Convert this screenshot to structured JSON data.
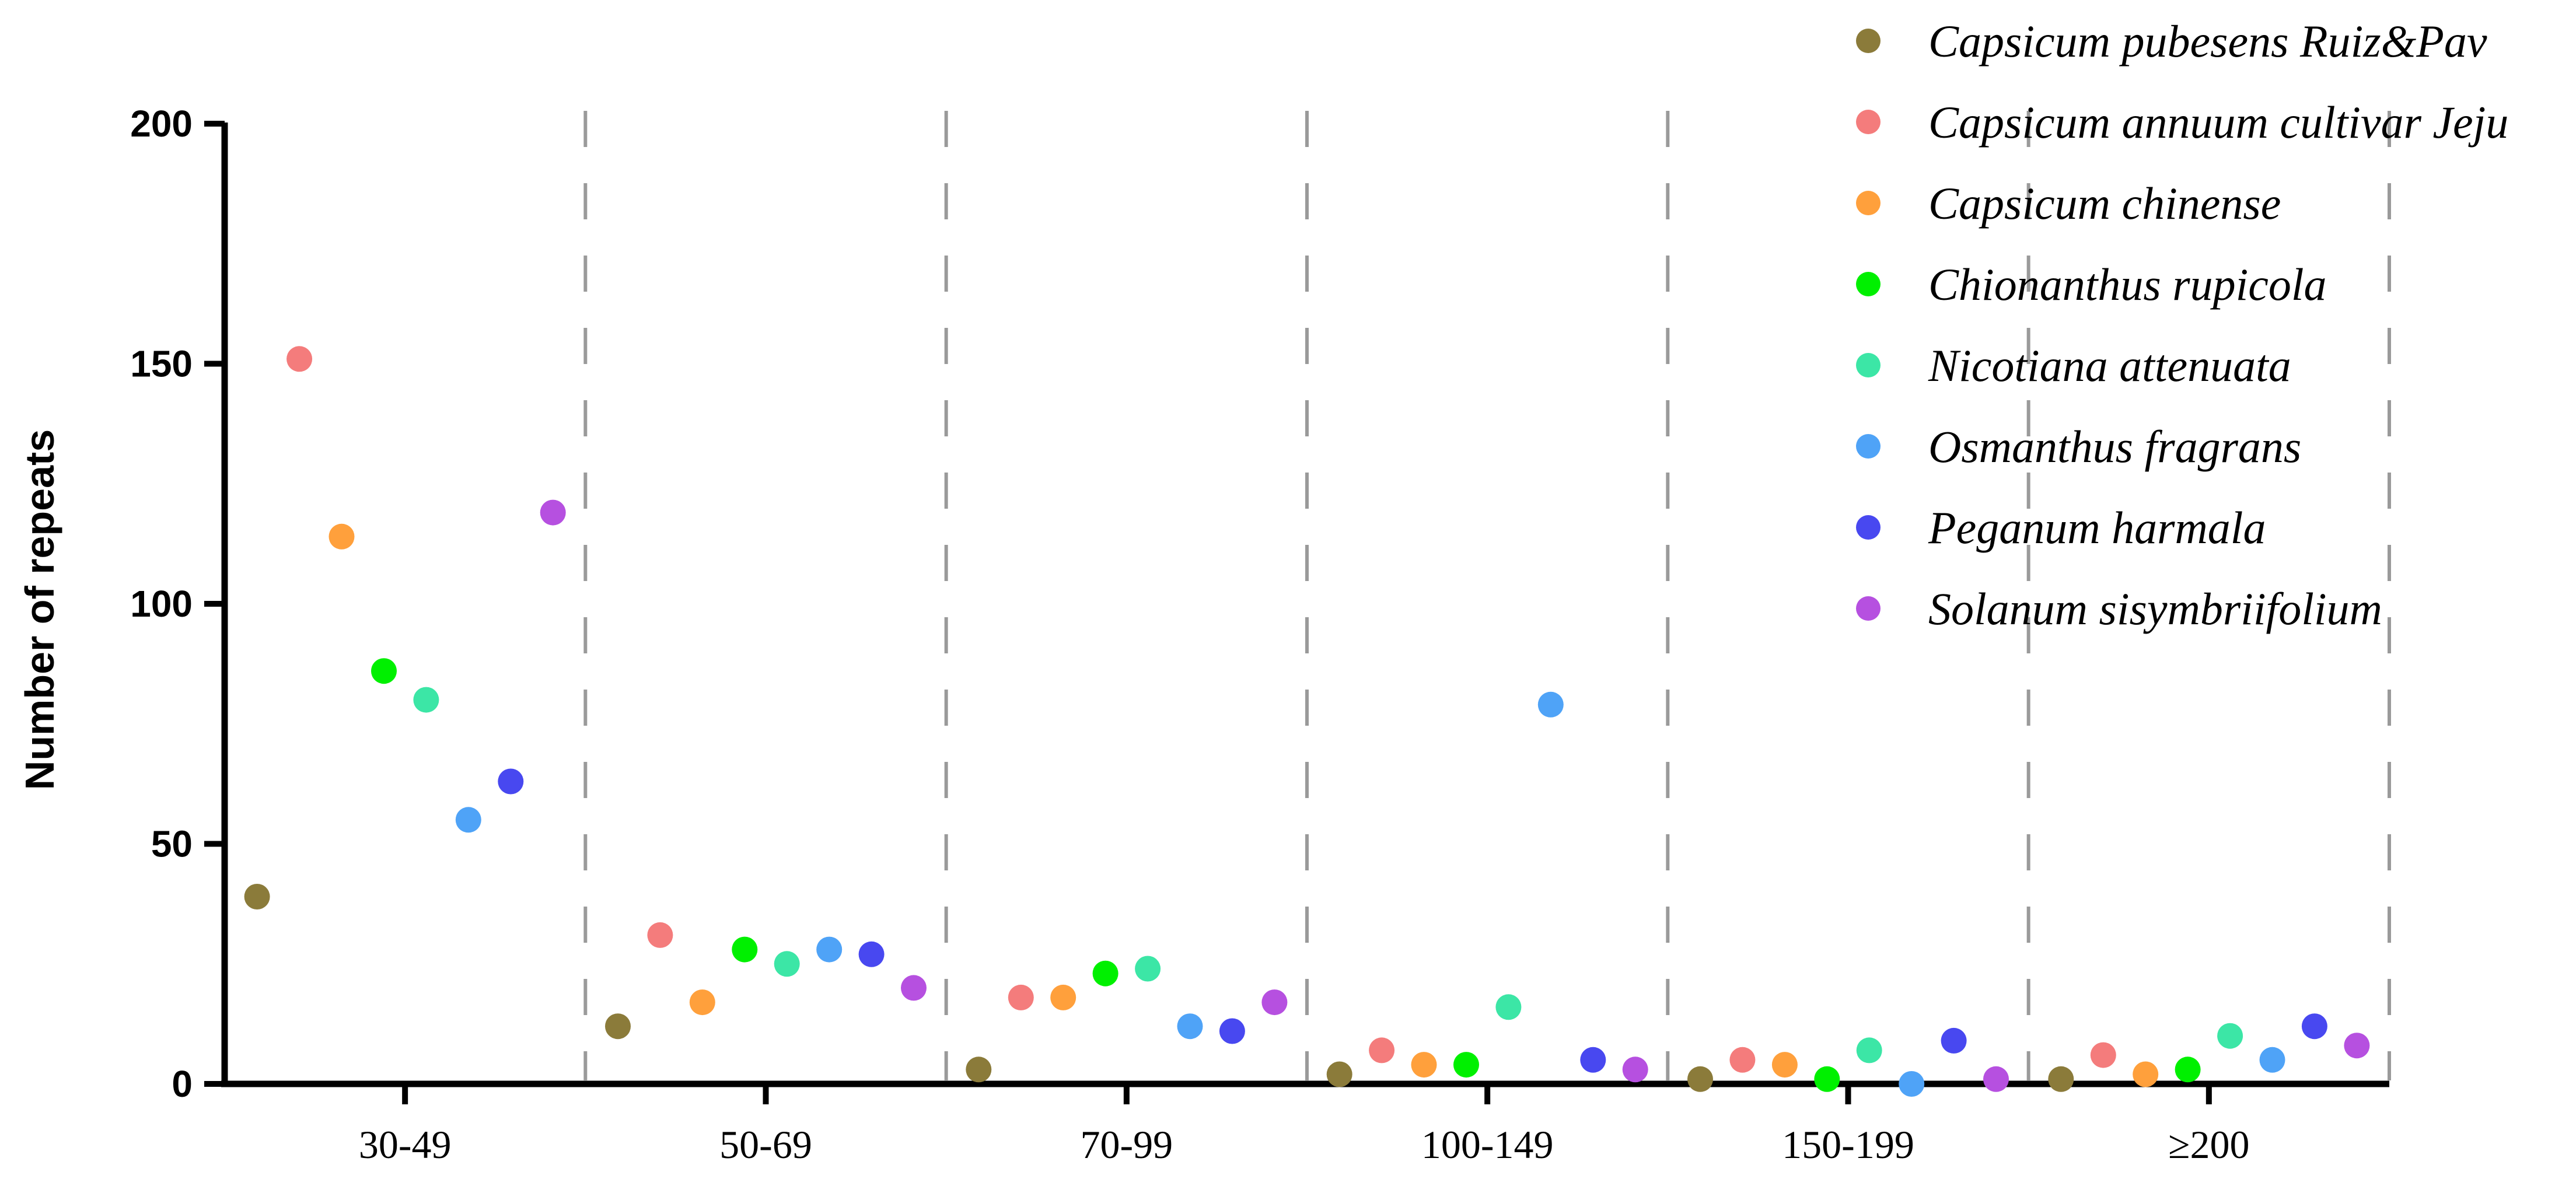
{
  "chart_data": {
    "type": "scatter",
    "title": "",
    "xlabel": "",
    "ylabel": "Number of repeats",
    "ylim": [
      0,
      200
    ],
    "yticks": [
      0,
      50,
      100,
      150,
      200
    ],
    "categories": [
      "30-49",
      "50-69",
      "70-99",
      "100-149",
      "150-199",
      "≥200"
    ],
    "grid": "vertical dashed separators between categories",
    "legend_position": "top-right",
    "series": [
      {
        "name": "Capsicum pubesens Ruiz&Pav",
        "color": "#8B7B3A",
        "values": [
          39,
          12,
          3,
          2,
          1,
          1
        ]
      },
      {
        "name": "Capsicum annuum cultivar Jeju",
        "color": "#F47C7C",
        "values": [
          151,
          31,
          18,
          7,
          5,
          6
        ]
      },
      {
        "name": "Capsicum chinense",
        "color": "#FFA03C",
        "values": [
          114,
          17,
          18,
          4,
          4,
          2
        ]
      },
      {
        "name": "Chionanthus rupicola",
        "color": "#00F000",
        "values": [
          86,
          28,
          23,
          4,
          1,
          3
        ]
      },
      {
        "name": "Nicotiana attenuata",
        "color": "#3CE6A6",
        "values": [
          80,
          25,
          24,
          16,
          7,
          10
        ]
      },
      {
        "name": "Osmanthus fragrans",
        "color": "#4FA3F7",
        "values": [
          55,
          28,
          12,
          79,
          0,
          5
        ]
      },
      {
        "name": "Peganum harmala",
        "color": "#4848F0",
        "values": [
          63,
          27,
          11,
          5,
          9,
          12
        ]
      },
      {
        "name": "Solanum sisymbriifolium",
        "color": "#B650E0",
        "values": [
          119,
          20,
          17,
          3,
          1,
          8
        ]
      }
    ]
  }
}
